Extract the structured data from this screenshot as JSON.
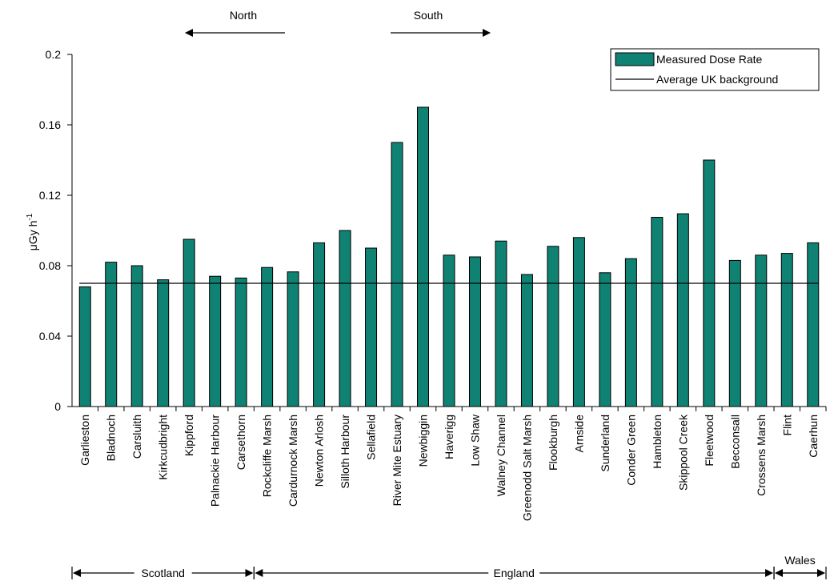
{
  "chart_data": {
    "type": "bar",
    "categories": [
      "Garlieston",
      "Bladnoch",
      "Carsluith",
      "Kirkcudbright",
      "Kippford",
      "Palnackie Harbour",
      "Carsethorn",
      "Rockcliffe Marsh",
      "Cardurnock Marsh",
      "Newton Arlosh",
      "Silloth Harbour",
      "Sellafield",
      "River Mite Estuary",
      "Newbiggin",
      "Haverigg",
      "Low Shaw",
      "Walney Channel",
      "Greenodd Salt Marsh",
      "Flookburgh",
      "Arnside",
      "Sunderland",
      "Conder Green",
      "Hambleton",
      "Skippool Creek",
      "Fleetwood",
      "Becconsall",
      "Crossens Marsh",
      "Flint",
      "Caerhun"
    ],
    "series": [
      {
        "name": "Measured Dose Rate",
        "values": [
          0.068,
          0.082,
          0.08,
          0.072,
          0.095,
          0.074,
          0.073,
          0.079,
          0.0765,
          0.093,
          0.1,
          0.09,
          0.15,
          0.17,
          0.086,
          0.085,
          0.094,
          0.075,
          0.091,
          0.096,
          0.076,
          0.084,
          0.1075,
          0.1095,
          0.14,
          0.083,
          0.086,
          0.087,
          0.093
        ],
        "color": "#0f8273"
      }
    ],
    "reference_line": {
      "name": "Average UK background",
      "value": 0.07,
      "color": "#000000"
    },
    "ylabel_main": "μGy h",
    "ylabel_sup": "-1",
    "yticks": [
      "0",
      "0.04",
      "0.08",
      "0.12",
      "0.16",
      "0.2"
    ],
    "ylim": [
      0,
      0.2
    ],
    "grid": false,
    "legend": {
      "position": "top-right",
      "bar_label": "Measured Dose Rate",
      "line_label": "Average UK background"
    },
    "direction_labels": {
      "north": "North",
      "south": "South"
    },
    "regions": [
      {
        "name": "Scotland",
        "start": 0,
        "end": 6
      },
      {
        "name": "England",
        "start": 7,
        "end": 26
      },
      {
        "name": "Wales",
        "start": 27,
        "end": 28
      }
    ]
  }
}
